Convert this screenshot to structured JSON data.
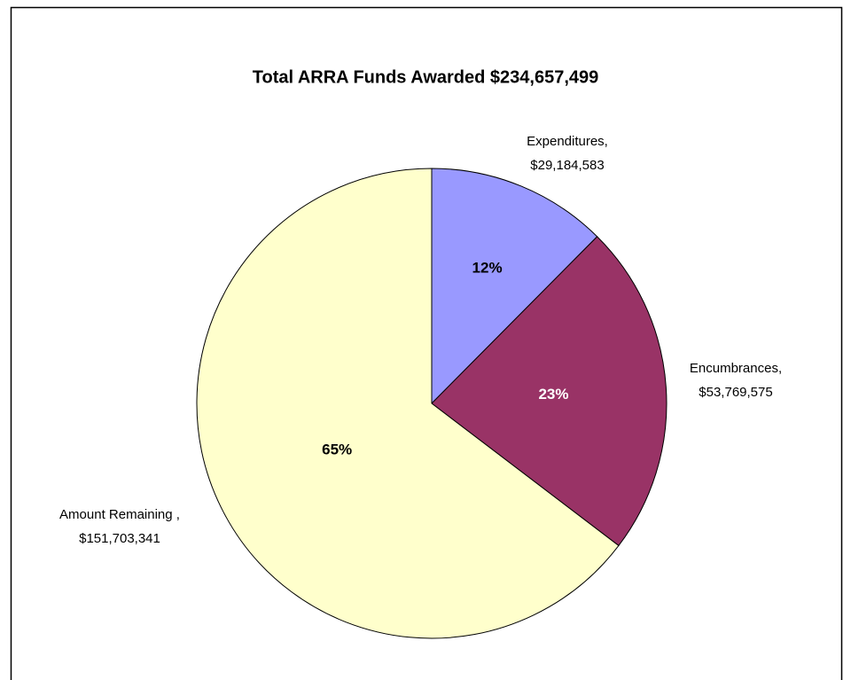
{
  "chart_data": {
    "type": "pie",
    "title": "Total ARRA Funds Awarded $234,657,499",
    "categories": [
      "Expenditures,",
      "Encumbrances,",
      "Amount Remaining ,"
    ],
    "values": [
      29184583,
      53769575,
      151703341
    ],
    "value_labels": [
      "$29,184,583",
      "$53,769,575",
      "$151,703,341"
    ],
    "percent_labels": [
      "12%",
      "23%",
      "65%"
    ],
    "colors": [
      "#9999ff",
      "#993366",
      "#ffffcc"
    ],
    "percent_label_colors": [
      "#000000",
      "#ffffff",
      "#000000"
    ]
  }
}
